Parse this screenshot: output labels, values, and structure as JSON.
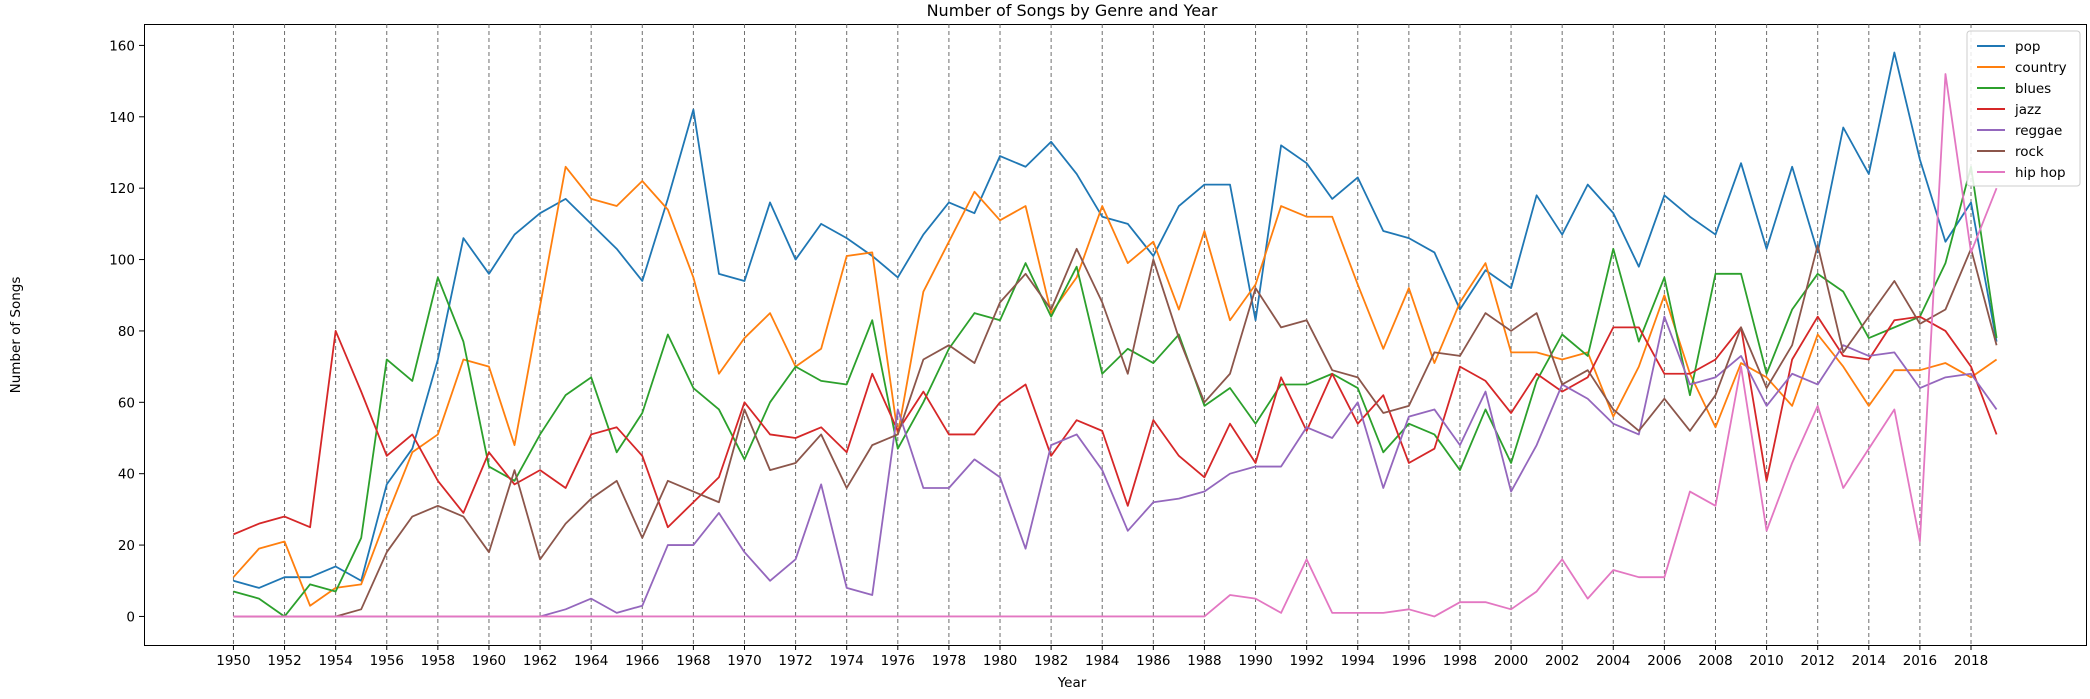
{
  "chart_data": {
    "type": "line",
    "title": "Number of Songs by Genre and Year",
    "xlabel": "Year",
    "ylabel": "Number of Songs",
    "xlim": [
      1946.5,
      2022.5
    ],
    "ylim": [
      -8,
      166
    ],
    "x_ticks": [
      1950,
      1952,
      1954,
      1956,
      1958,
      1960,
      1962,
      1964,
      1966,
      1968,
      1970,
      1972,
      1974,
      1976,
      1978,
      1980,
      1982,
      1984,
      1986,
      1988,
      1990,
      1992,
      1994,
      1996,
      1998,
      2000,
      2002,
      2004,
      2006,
      2008,
      2010,
      2012,
      2014,
      2016,
      2018
    ],
    "y_ticks": [
      0,
      20,
      40,
      60,
      80,
      100,
      120,
      140,
      160
    ],
    "vertical_dashed_gridlines": true,
    "legend_position": "top-right",
    "x": [
      1950,
      1951,
      1952,
      1953,
      1954,
      1955,
      1956,
      1957,
      1958,
      1959,
      1960,
      1961,
      1962,
      1963,
      1964,
      1965,
      1966,
      1967,
      1968,
      1969,
      1970,
      1971,
      1972,
      1973,
      1974,
      1975,
      1976,
      1977,
      1978,
      1979,
      1980,
      1981,
      1982,
      1983,
      1984,
      1985,
      1986,
      1987,
      1988,
      1989,
      1990,
      1991,
      1992,
      1993,
      1994,
      1995,
      1996,
      1997,
      1998,
      1999,
      2000,
      2001,
      2002,
      2003,
      2004,
      2005,
      2006,
      2007,
      2008,
      2009,
      2010,
      2011,
      2012,
      2013,
      2014,
      2015,
      2016,
      2017,
      2018,
      2019
    ],
    "series": [
      {
        "name": "pop",
        "color": "#1f77b4",
        "values": [
          10,
          8,
          11,
          11,
          14,
          10,
          37,
          47,
          72,
          106,
          96,
          107,
          113,
          117,
          110,
          103,
          94,
          117,
          142,
          96,
          94,
          116,
          100,
          110,
          106,
          101,
          95,
          107,
          116,
          113,
          129,
          126,
          133,
          124,
          112,
          110,
          101,
          115,
          121,
          121,
          83,
          132,
          127,
          117,
          123,
          108,
          106,
          102,
          86,
          97,
          92,
          118,
          107,
          121,
          113,
          98,
          118,
          112,
          107,
          127,
          103,
          126,
          102,
          137,
          124,
          158,
          128,
          105,
          116,
          77
        ]
      },
      {
        "name": "country",
        "color": "#ff7f0e",
        "values": [
          11,
          19,
          21,
          3,
          8,
          9,
          28,
          46,
          51,
          72,
          70,
          48,
          87,
          126,
          117,
          115,
          122,
          114,
          95,
          68,
          78,
          85,
          70,
          75,
          101,
          102,
          51,
          91,
          105,
          119,
          111,
          115,
          85,
          95,
          115,
          99,
          105,
          86,
          108,
          83,
          93,
          115,
          112,
          112,
          93,
          75,
          92,
          71,
          88,
          99,
          74,
          74,
          72,
          74,
          56,
          70,
          90,
          68,
          53,
          71,
          67,
          59,
          79,
          70,
          59,
          69,
          69,
          71,
          67,
          72
        ]
      },
      {
        "name": "blues",
        "color": "#2ca02c",
        "values": [
          7,
          5,
          0,
          9,
          7,
          22,
          72,
          66,
          95,
          77,
          42,
          38,
          51,
          62,
          67,
          46,
          57,
          79,
          64,
          58,
          44,
          60,
          70,
          66,
          65,
          83,
          47,
          60,
          75,
          85,
          83,
          99,
          84,
          98,
          68,
          75,
          71,
          79,
          59,
          64,
          54,
          65,
          65,
          68,
          64,
          46,
          54,
          51,
          41,
          58,
          43,
          66,
          79,
          73,
          103,
          77,
          95,
          62,
          96,
          96,
          68,
          86,
          96,
          91,
          78,
          81,
          84,
          99,
          126,
          78
        ]
      },
      {
        "name": "jazz",
        "color": "#d62728",
        "values": [
          23,
          26,
          28,
          25,
          80,
          63,
          45,
          51,
          38,
          29,
          46,
          37,
          41,
          36,
          51,
          53,
          45,
          25,
          32,
          39,
          60,
          51,
          50,
          53,
          46,
          68,
          52,
          63,
          51,
          51,
          60,
          65,
          45,
          55,
          52,
          31,
          55,
          45,
          39,
          54,
          43,
          67,
          52,
          68,
          54,
          62,
          43,
          47,
          70,
          66,
          57,
          68,
          63,
          67,
          81,
          81,
          68,
          68,
          72,
          81,
          38,
          72,
          84,
          73,
          72,
          83,
          84,
          80,
          70,
          51
        ]
      },
      {
        "name": "reggae",
        "color": "#9467bd",
        "values": [
          0,
          0,
          0,
          0,
          0,
          0,
          0,
          0,
          0,
          0,
          0,
          0,
          0,
          2,
          5,
          1,
          3,
          20,
          20,
          29,
          18,
          10,
          16,
          37,
          8,
          6,
          58,
          36,
          36,
          44,
          39,
          19,
          48,
          51,
          41,
          24,
          32,
          33,
          35,
          40,
          42,
          42,
          53,
          50,
          60,
          36,
          56,
          58,
          48,
          63,
          35,
          48,
          65,
          61,
          54,
          51,
          84,
          65,
          67,
          73,
          59,
          68,
          65,
          76,
          73,
          74,
          64,
          67,
          68,
          58
        ]
      },
      {
        "name": "rock",
        "color": "#8c564b",
        "values": [
          0,
          0,
          0,
          0,
          0,
          2,
          18,
          28,
          31,
          28,
          18,
          41,
          16,
          26,
          33,
          38,
          22,
          38,
          35,
          32,
          58,
          41,
          43,
          51,
          36,
          48,
          51,
          72,
          76,
          71,
          88,
          96,
          86,
          103,
          88,
          68,
          100,
          78,
          60,
          68,
          92,
          81,
          83,
          69,
          67,
          57,
          59,
          74,
          73,
          85,
          80,
          85,
          65,
          69,
          58,
          52,
          61,
          52,
          62,
          81,
          64,
          76,
          104,
          74,
          84,
          94,
          82,
          86,
          103,
          76
        ]
      },
      {
        "name": "hip hop",
        "color": "#e377c2",
        "values": [
          0,
          0,
          0,
          0,
          0,
          0,
          0,
          0,
          0,
          0,
          0,
          0,
          0,
          0,
          0,
          0,
          0,
          0,
          0,
          0,
          0,
          0,
          0,
          0,
          0,
          0,
          0,
          0,
          0,
          0,
          0,
          0,
          0,
          0,
          0,
          0,
          0,
          0,
          0,
          6,
          5,
          1,
          16,
          1,
          1,
          1,
          2,
          0,
          4,
          4,
          2,
          7,
          16,
          5,
          13,
          11,
          11,
          35,
          31,
          70,
          24,
          43,
          59,
          36,
          47,
          58,
          21,
          152,
          102,
          120
        ]
      }
    ]
  }
}
